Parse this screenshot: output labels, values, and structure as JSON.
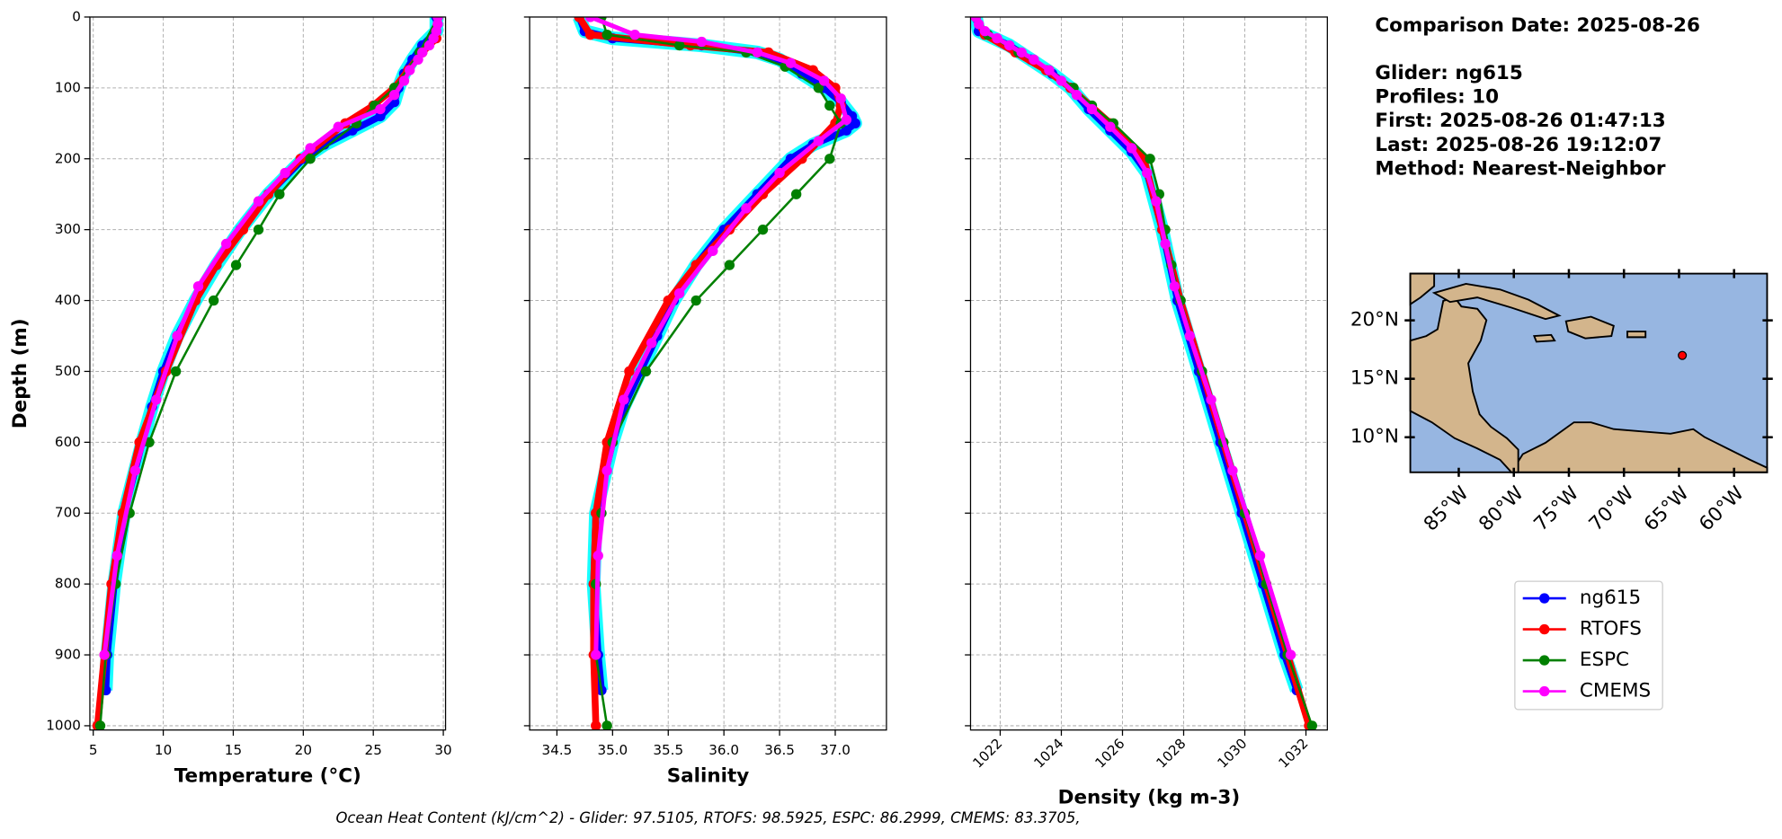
{
  "chart_data": [
    {
      "type": "line",
      "xlabel": "Temperature (°C)",
      "ylabel": "Depth (m)",
      "show_ytick_labels": true,
      "xtick_rotation": 0,
      "grid": true,
      "xlim": [
        4.76,
        30.16
      ],
      "xticks": [
        5,
        10,
        15,
        20,
        25,
        30
      ],
      "ylim": [
        1006,
        0
      ],
      "yticks": [
        0,
        100,
        200,
        300,
        400,
        500,
        600,
        700,
        800,
        900,
        1000
      ],
      "series": [
        {
          "name": "ng615",
          "color": "#0000ff",
          "linewidth": 6,
          "depth": [
            0,
            20,
            40,
            60,
            80,
            100,
            120,
            140,
            160,
            180,
            200,
            250,
            300,
            350,
            400,
            450,
            500,
            550,
            600,
            700,
            800,
            900,
            950
          ],
          "values": [
            29.5,
            29.5,
            28.5,
            27.8,
            27.2,
            26.8,
            26.5,
            25.5,
            23.5,
            21.5,
            20,
            17.5,
            15.5,
            13.8,
            12.3,
            11,
            10,
            9.2,
            8.5,
            7.2,
            6.5,
            6,
            5.9
          ]
        },
        {
          "name": "RTOFS",
          "color": "#ff0000",
          "linewidth": 6,
          "depth": [
            0,
            30,
            50,
            75,
            100,
            125,
            150,
            200,
            250,
            300,
            350,
            400,
            500,
            600,
            700,
            800,
            900,
            1000
          ],
          "values": [
            29.6,
            29.5,
            28.5,
            27.5,
            26.5,
            25,
            23,
            19.8,
            17.5,
            15.7,
            13.8,
            12.3,
            10.2,
            8.3,
            7.1,
            6.3,
            5.8,
            5.3
          ]
        },
        {
          "name": "ESPC",
          "color": "#008000",
          "linewidth": 2,
          "depth": [
            0,
            50,
            100,
            125,
            150,
            200,
            250,
            300,
            350,
            400,
            500,
            600,
            700,
            800,
            900,
            1000
          ],
          "values": [
            29.6,
            28.3,
            26.5,
            25.1,
            23.8,
            20.5,
            18.3,
            16.8,
            15.2,
            13.6,
            10.9,
            9,
            7.6,
            6.6,
            5.9,
            5.5
          ]
        },
        {
          "name": "CMEMS",
          "color": "#ff00ff",
          "linewidth": 4,
          "depth": [
            0,
            10,
            20,
            30,
            40,
            50,
            60,
            75,
            90,
            110,
            130,
            155,
            185,
            220,
            260,
            320,
            380,
            450,
            540,
            640,
            760,
            900
          ],
          "values": [
            29.6,
            29.6,
            29.5,
            29.3,
            29,
            28.5,
            28.2,
            27.6,
            27.2,
            26.5,
            25.5,
            22.5,
            20.5,
            18.7,
            16.8,
            14.5,
            12.5,
            11,
            9.5,
            8,
            6.7,
            5.8
          ]
        }
      ]
    },
    {
      "type": "line",
      "xlabel": "Salinity",
      "show_ytick_labels": false,
      "xtick_rotation": 0,
      "grid": true,
      "xlim": [
        34.255,
        37.46
      ],
      "xticks": [
        34.5,
        {
          "value": 35,
          "label": "35.0"
        },
        35.5,
        {
          "value": 36,
          "label": "36.0"
        },
        36.5,
        {
          "value": 37,
          "label": "37.0"
        }
      ],
      "ylim": [
        1006,
        0
      ],
      "yticks": [
        0,
        100,
        200,
        300,
        400,
        500,
        600,
        700,
        800,
        900,
        1000
      ],
      "series": [
        {
          "name": "ng615",
          "color": "#0000ff",
          "linewidth": 6,
          "depth": [
            0,
            20,
            30,
            40,
            50,
            60,
            80,
            100,
            120,
            140,
            150,
            160,
            180,
            200,
            250,
            300,
            350,
            400,
            450,
            500,
            550,
            600,
            700,
            800,
            900,
            950
          ],
          "values": [
            34.7,
            34.75,
            35,
            35.8,
            36.3,
            36.5,
            36.7,
            36.9,
            37.05,
            37.15,
            37.18,
            37.1,
            36.8,
            36.6,
            36.3,
            36,
            35.75,
            35.55,
            35.4,
            35.25,
            35.1,
            35,
            34.85,
            34.83,
            34.87,
            34.9
          ]
        },
        {
          "name": "RTOFS",
          "color": "#ff0000",
          "linewidth": 6,
          "depth": [
            0,
            25,
            40,
            50,
            75,
            100,
            125,
            150,
            200,
            250,
            300,
            350,
            400,
            500,
            600,
            700,
            800,
            900,
            1000
          ],
          "values": [
            34.7,
            34.8,
            35.7,
            36.4,
            36.8,
            37,
            37.05,
            37,
            36.7,
            36.35,
            36.05,
            35.75,
            35.5,
            35.15,
            34.95,
            34.85,
            34.83,
            34.83,
            34.85
          ]
        },
        {
          "name": "ESPC",
          "color": "#008000",
          "linewidth": 2,
          "depth": [
            0,
            25,
            40,
            50,
            70,
            100,
            125,
            150,
            200,
            250,
            300,
            350,
            400,
            500,
            600,
            700,
            800,
            900,
            1000
          ],
          "values": [
            34.9,
            34.95,
            35.6,
            36.2,
            36.55,
            36.85,
            36.95,
            37.05,
            36.95,
            36.65,
            36.35,
            36.05,
            35.75,
            35.3,
            35,
            34.9,
            34.85,
            34.85,
            34.95
          ]
        },
        {
          "name": "CMEMS",
          "color": "#ff00ff",
          "linewidth": 4,
          "depth": [
            0,
            25,
            35,
            50,
            65,
            90,
            115,
            145,
            175,
            220,
            270,
            330,
            390,
            460,
            540,
            640,
            760,
            900
          ],
          "values": [
            34.8,
            35.2,
            35.8,
            36.3,
            36.6,
            36.9,
            37.05,
            37.1,
            36.85,
            36.5,
            36.2,
            35.9,
            35.6,
            35.35,
            35.1,
            34.95,
            34.87,
            34.85
          ]
        }
      ]
    },
    {
      "type": "line",
      "xlabel": "Density (kg m-3)",
      "show_ytick_labels": false,
      "xtick_rotation": 45,
      "grid": true,
      "xlim": [
        1021.03,
        1032.7
      ],
      "xticks": [
        1022,
        1024,
        1026,
        1028,
        1030,
        1032
      ],
      "ylim": [
        1006,
        0
      ],
      "yticks": [
        0,
        100,
        200,
        300,
        400,
        500,
        600,
        700,
        800,
        900,
        1000
      ],
      "series": [
        {
          "name": "ng615",
          "color": "#0000ff",
          "linewidth": 6,
          "depth": [
            0,
            20,
            40,
            60,
            80,
            100,
            130,
            160,
            190,
            220,
            300,
            400,
            500,
            600,
            700,
            800,
            900,
            950
          ],
          "values": [
            1021.2,
            1021.3,
            1022.3,
            1023,
            1023.7,
            1024.3,
            1024.9,
            1025.6,
            1026.3,
            1026.8,
            1027.3,
            1027.8,
            1028.5,
            1029.2,
            1029.9,
            1030.6,
            1031.3,
            1031.7
          ]
        },
        {
          "name": "RTOFS",
          "color": "#ff0000",
          "linewidth": 6,
          "depth": [
            0,
            25,
            50,
            75,
            100,
            150,
            200,
            300,
            400,
            500,
            600,
            700,
            800,
            900,
            1000
          ],
          "values": [
            1021.2,
            1021.5,
            1022.5,
            1023.5,
            1024.3,
            1025.6,
            1026.7,
            1027.3,
            1027.9,
            1028.6,
            1029.3,
            1030,
            1030.7,
            1031.4,
            1032.1
          ]
        },
        {
          "name": "ESPC",
          "color": "#008000",
          "linewidth": 2,
          "depth": [
            0,
            25,
            50,
            75,
            100,
            125,
            150,
            200,
            250,
            300,
            350,
            400,
            500,
            600,
            700,
            800,
            900,
            1000
          ],
          "values": [
            1021.2,
            1021.6,
            1022.6,
            1023.6,
            1024.4,
            1025,
            1025.7,
            1026.9,
            1027.2,
            1027.4,
            1027.6,
            1027.9,
            1028.6,
            1029.3,
            1030,
            1030.7,
            1031.4,
            1032.2
          ]
        },
        {
          "name": "CMEMS",
          "color": "#ff00ff",
          "linewidth": 4,
          "depth": [
            0,
            10,
            20,
            30,
            40,
            50,
            60,
            75,
            90,
            110,
            130,
            155,
            185,
            220,
            260,
            320,
            380,
            450,
            540,
            640,
            760,
            900
          ],
          "values": [
            1021.2,
            1021.3,
            1021.5,
            1021.9,
            1022.3,
            1022.7,
            1023.1,
            1023.6,
            1024,
            1024.5,
            1025,
            1025.6,
            1026.3,
            1026.8,
            1027.1,
            1027.4,
            1027.7,
            1028.2,
            1028.9,
            1029.6,
            1030.5,
            1031.5
          ]
        }
      ]
    },
    {
      "type": "map",
      "xlim": [
        -89.4,
        -57.0
      ],
      "xticks": [
        {
          "value": -85,
          "label": "85°W"
        },
        {
          "value": -80,
          "label": "80°W"
        },
        {
          "value": -75,
          "label": "75°W"
        },
        {
          "value": -70,
          "label": "70°W"
        },
        {
          "value": -65,
          "label": "65°W"
        },
        {
          "value": -60,
          "label": "60°W"
        }
      ],
      "ylim": [
        7.0,
        24.0
      ],
      "yticks": [
        {
          "value": 10,
          "label": "10°N"
        },
        {
          "value": 15,
          "label": "15°N"
        },
        {
          "value": 20,
          "label": "20°N"
        }
      ],
      "points": {
        "lon": [
          -64.7
        ],
        "lat": [
          17.0
        ],
        "color": "#ff0000"
      }
    }
  ],
  "info": {
    "comparison": "Comparison Date: 2025-08-26",
    "lines": [
      "Glider: ng615",
      "Profiles: 10",
      "First: 2025-08-26 01:47:13",
      "Last: 2025-08-26 19:12:07",
      "Method: Nearest-Neighbor"
    ]
  },
  "footer": "Ocean Heat Content (kJ/cm^2) - Glider: 97.5105,  RTOFS: 98.5925,  ESPC: 86.2999,  CMEMS: 83.3705,"
}
